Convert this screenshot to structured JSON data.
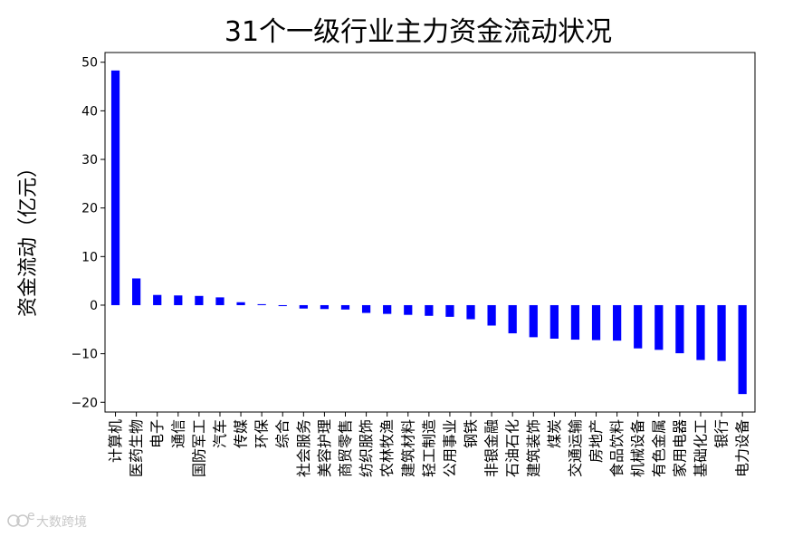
{
  "chart_data": {
    "type": "bar",
    "title": "31个一级行业主力资金流动状况",
    "xlabel": "",
    "ylabel": "资金流动（亿元）",
    "ylim": [
      -22,
      52
    ],
    "yticks": [
      -20,
      -10,
      0,
      10,
      20,
      30,
      40,
      50
    ],
    "grid": false,
    "bar_color": "#0000ff",
    "categories": [
      "计算机",
      "医药生物",
      "电子",
      "通信",
      "国防军工",
      "汽车",
      "传媒",
      "环保",
      "综合",
      "社会服务",
      "美容护理",
      "商贸零售",
      "纺织服饰",
      "农林牧渔",
      "建筑材料",
      "轻工制造",
      "公用事业",
      "钢铁",
      "非银金融",
      "石油石化",
      "建筑装饰",
      "煤炭",
      "交通运输",
      "房地产",
      "食品饮料",
      "机械设备",
      "有色金属",
      "家用电器",
      "基础化工",
      "银行",
      "电力设备"
    ],
    "values": [
      48.3,
      5.5,
      2.1,
      2.0,
      1.9,
      1.6,
      0.6,
      0.2,
      -0.2,
      -0.7,
      -0.8,
      -0.9,
      -1.6,
      -1.8,
      -2.0,
      -2.2,
      -2.4,
      -2.9,
      -4.2,
      -5.8,
      -6.6,
      -6.9,
      -7.1,
      -7.2,
      -7.3,
      -8.9,
      -9.2,
      -9.9,
      -11.3,
      -11.5,
      -18.3
    ]
  },
  "watermark": {
    "text": "大数跨境"
  }
}
